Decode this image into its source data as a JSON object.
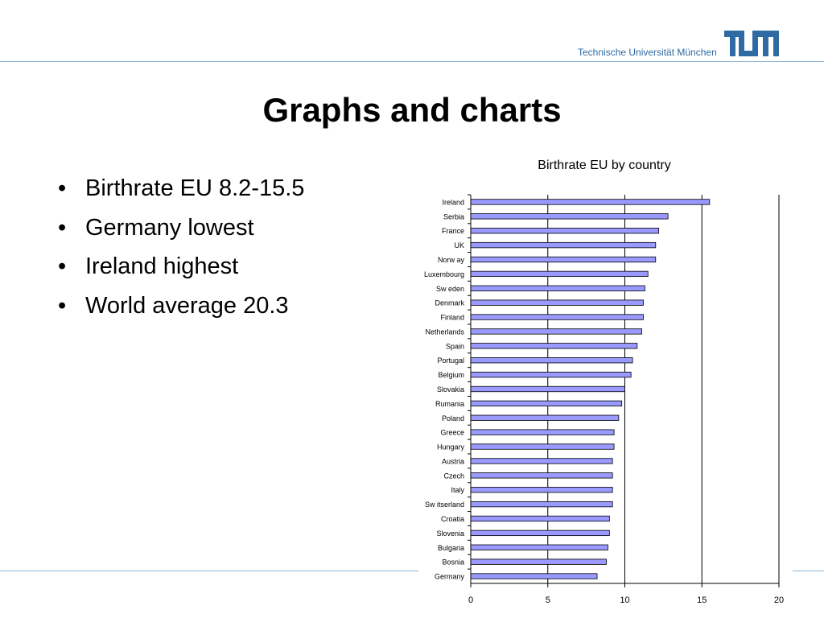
{
  "header": {
    "institution": "Technische Universität München",
    "logo_icon": "tum-logo-icon",
    "brand_color": "#2f6aa3",
    "rule_color": "#8fb3d9"
  },
  "slide": {
    "title": "Graphs and charts",
    "bullets": [
      "Birthrate EU 8.2-15.5",
      "Germany lowest",
      "Ireland highest",
      "World average 20.3"
    ]
  },
  "chart_data": {
    "type": "bar",
    "orientation": "horizontal",
    "title": "Birthrate EU by country",
    "xlabel": "",
    "ylabel": "",
    "xlim": [
      0,
      20
    ],
    "xticks": [
      0,
      5,
      10,
      15,
      20
    ],
    "grid": true,
    "legend": "none",
    "bar_color": "#9999ff",
    "categories": [
      "Ireland",
      "Serbia",
      "France",
      "UK",
      "Norw ay",
      "Luxembourg",
      "Sw eden",
      "Denmark",
      "Finland",
      "Netherlands",
      "Spain",
      "Portugal",
      "Belgium",
      "Slovakia",
      "Rumania",
      "Poland",
      "Greece",
      "Hungary",
      "Austria",
      "Czech",
      "Italy",
      "Sw itserland",
      "Croatia",
      "Slovenia",
      "Bulgaria",
      "Bosnia",
      "Germany"
    ],
    "values": [
      15.5,
      12.8,
      12.2,
      12.0,
      12.0,
      11.5,
      11.3,
      11.2,
      11.2,
      11.1,
      10.8,
      10.5,
      10.4,
      10.0,
      9.8,
      9.6,
      9.3,
      9.3,
      9.2,
      9.2,
      9.2,
      9.2,
      9.0,
      9.0,
      8.9,
      8.8,
      8.2
    ]
  }
}
